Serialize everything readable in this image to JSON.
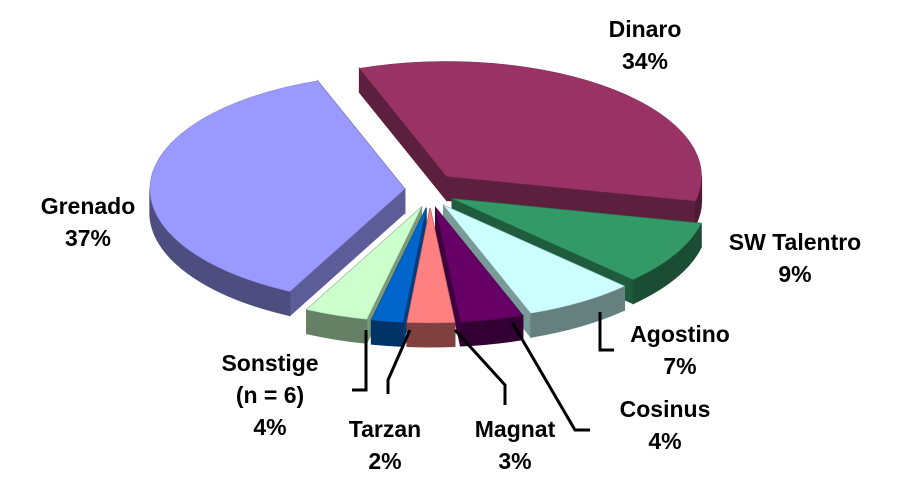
{
  "chart_data": {
    "type": "pie",
    "categories": [
      "Dinaro",
      "SW Talentro",
      "Agostino",
      "Cosinus",
      "Magnat",
      "Tarzan",
      "Sonstige (n = 6)",
      "Grenado"
    ],
    "values": [
      34,
      9,
      7,
      4,
      3,
      2,
      4,
      37
    ],
    "value_labels": [
      "34%",
      "9%",
      "7%",
      "4%",
      "3%",
      "2%",
      "4%",
      "37%"
    ],
    "colors": [
      "#993366",
      "#339966",
      "#ccffff",
      "#660066",
      "#ff8080",
      "#0066cc",
      "#ccffcc",
      "#9999ff"
    ]
  }
}
